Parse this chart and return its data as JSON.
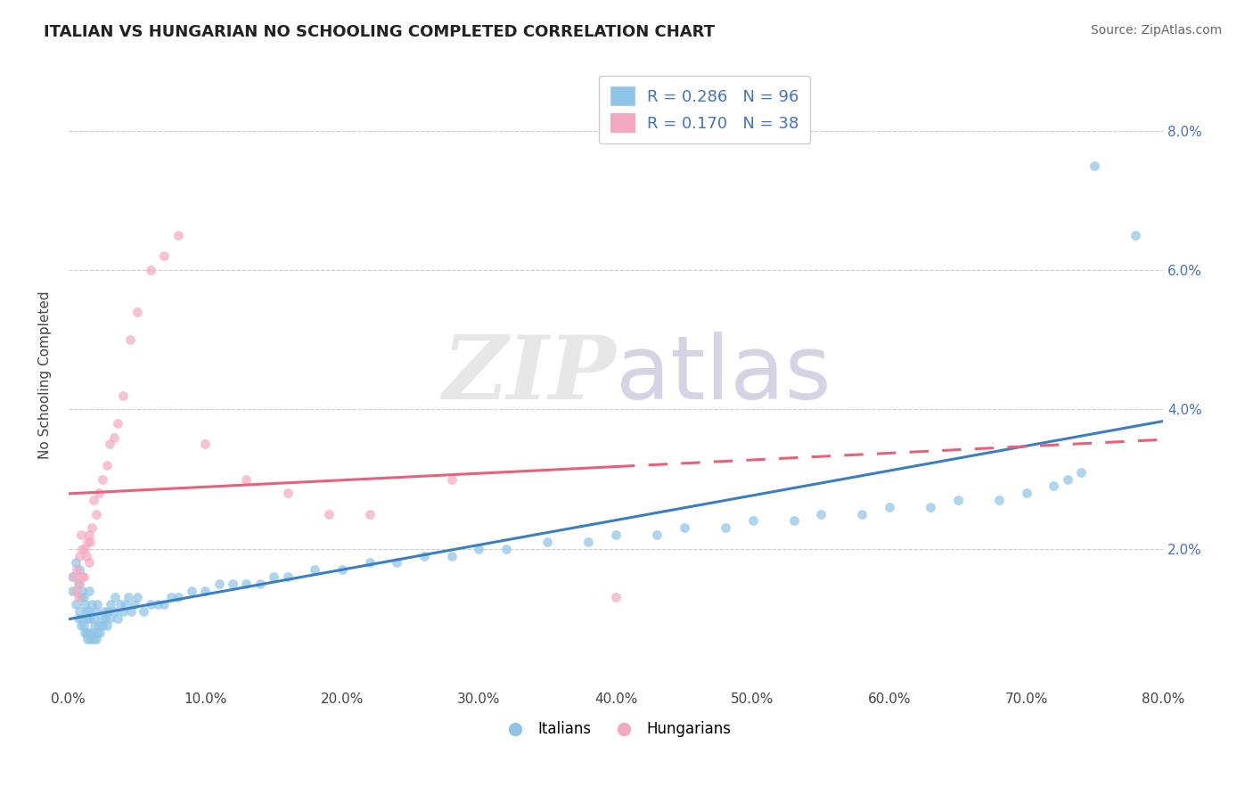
{
  "title": "ITALIAN VS HUNGARIAN NO SCHOOLING COMPLETED CORRELATION CHART",
  "source": "Source: ZipAtlas.com",
  "ylabel": "No Schooling Completed",
  "xlabel": "",
  "watermark": "ZIPatlas",
  "legend_label1": "Italians",
  "legend_label2": "Hungarians",
  "italian_color": "#8ec4e8",
  "hungarian_color": "#f4a8bf",
  "italian_line_color": "#3a7fc1",
  "hungarian_line_color": "#e8607a",
  "xlim": [
    0.0,
    0.8
  ],
  "ylim": [
    0.0,
    0.09
  ],
  "r_italian": 0.286,
  "r_hungarian": 0.17,
  "n_italian": 96,
  "n_hungarian": 38,
  "italian_x": [
    0.003,
    0.003,
    0.005,
    0.005,
    0.007,
    0.007,
    0.008,
    0.008,
    0.009,
    0.009,
    0.01,
    0.01,
    0.011,
    0.011,
    0.012,
    0.012,
    0.013,
    0.013,
    0.014,
    0.014,
    0.015,
    0.015,
    0.015,
    0.016,
    0.016,
    0.017,
    0.017,
    0.018,
    0.018,
    0.019,
    0.02,
    0.02,
    0.021,
    0.021,
    0.022,
    0.023,
    0.024,
    0.025,
    0.026,
    0.027,
    0.028,
    0.029,
    0.03,
    0.031,
    0.033,
    0.034,
    0.036,
    0.038,
    0.04,
    0.042,
    0.044,
    0.046,
    0.048,
    0.05,
    0.055,
    0.06,
    0.065,
    0.07,
    0.075,
    0.08,
    0.09,
    0.1,
    0.11,
    0.12,
    0.13,
    0.14,
    0.15,
    0.16,
    0.18,
    0.2,
    0.22,
    0.24,
    0.26,
    0.28,
    0.3,
    0.32,
    0.35,
    0.38,
    0.4,
    0.43,
    0.45,
    0.48,
    0.5,
    0.53,
    0.55,
    0.58,
    0.6,
    0.63,
    0.65,
    0.68,
    0.7,
    0.72,
    0.73,
    0.74,
    0.75,
    0.78
  ],
  "italian_y": [
    0.014,
    0.016,
    0.012,
    0.018,
    0.01,
    0.015,
    0.011,
    0.017,
    0.009,
    0.013,
    0.01,
    0.014,
    0.009,
    0.013,
    0.008,
    0.012,
    0.008,
    0.011,
    0.007,
    0.01,
    0.008,
    0.011,
    0.014,
    0.007,
    0.01,
    0.008,
    0.012,
    0.007,
    0.01,
    0.009,
    0.007,
    0.011,
    0.008,
    0.012,
    0.009,
    0.008,
    0.01,
    0.009,
    0.011,
    0.01,
    0.009,
    0.011,
    0.01,
    0.012,
    0.011,
    0.013,
    0.01,
    0.012,
    0.011,
    0.012,
    0.013,
    0.011,
    0.012,
    0.013,
    0.011,
    0.012,
    0.012,
    0.012,
    0.013,
    0.013,
    0.014,
    0.014,
    0.015,
    0.015,
    0.015,
    0.015,
    0.016,
    0.016,
    0.017,
    0.017,
    0.018,
    0.018,
    0.019,
    0.019,
    0.02,
    0.02,
    0.021,
    0.021,
    0.022,
    0.022,
    0.023,
    0.023,
    0.024,
    0.024,
    0.025,
    0.025,
    0.026,
    0.026,
    0.027,
    0.027,
    0.028,
    0.029,
    0.03,
    0.031,
    0.075,
    0.065
  ],
  "hungarian_x": [
    0.004,
    0.005,
    0.006,
    0.007,
    0.008,
    0.008,
    0.009,
    0.01,
    0.01,
    0.011,
    0.012,
    0.013,
    0.014,
    0.015,
    0.015,
    0.016,
    0.017,
    0.018,
    0.02,
    0.022,
    0.025,
    0.028,
    0.03,
    0.033,
    0.036,
    0.04,
    0.045,
    0.05,
    0.06,
    0.07,
    0.08,
    0.1,
    0.13,
    0.16,
    0.19,
    0.22,
    0.28,
    0.4
  ],
  "hungarian_y": [
    0.016,
    0.014,
    0.017,
    0.013,
    0.019,
    0.015,
    0.022,
    0.016,
    0.02,
    0.016,
    0.02,
    0.019,
    0.021,
    0.018,
    0.022,
    0.021,
    0.023,
    0.027,
    0.025,
    0.028,
    0.03,
    0.032,
    0.035,
    0.036,
    0.038,
    0.042,
    0.05,
    0.054,
    0.06,
    0.062,
    0.065,
    0.035,
    0.03,
    0.028,
    0.025,
    0.025,
    0.03,
    0.013
  ]
}
